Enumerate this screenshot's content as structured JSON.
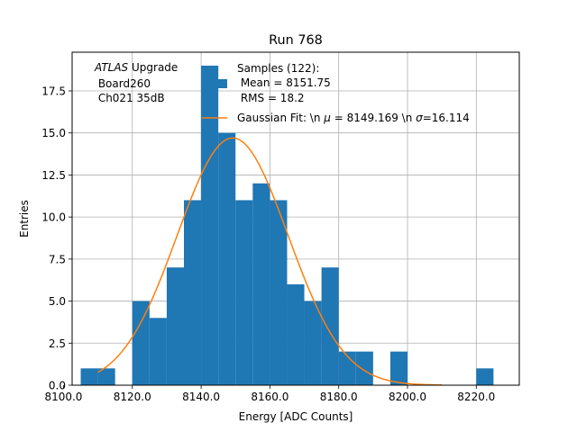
{
  "chart_data": {
    "type": "bar",
    "title": "Run 768",
    "xlabel": "Energy [ADC Counts]",
    "ylabel": "Entries",
    "xlim": [
      8102.5,
      8232.5
    ],
    "ylim": [
      0,
      19.8
    ],
    "x_ticks": [
      8100.0,
      8120.0,
      8140.0,
      8160.0,
      8180.0,
      8200.0,
      8220.0
    ],
    "x_tick_labels": [
      "8100.0",
      "8120.0",
      "8140.0",
      "8160.0",
      "8180.0",
      "8200.0",
      "8220.0"
    ],
    "y_ticks": [
      0.0,
      2.5,
      5.0,
      7.5,
      10.0,
      12.5,
      15.0,
      17.5
    ],
    "y_tick_labels": [
      "0.0",
      "2.5",
      "5.0",
      "7.5",
      "10.0",
      "12.5",
      "15.0",
      "17.5"
    ],
    "grid": true,
    "bin_width": 5,
    "bin_starts": [
      8105,
      8110,
      8115,
      8120,
      8125,
      8130,
      8135,
      8140,
      8145,
      8150,
      8155,
      8160,
      8165,
      8170,
      8175,
      8180,
      8185,
      8190,
      8195,
      8200,
      8205,
      8210,
      8215,
      8220
    ],
    "values": [
      1,
      1,
      0,
      5,
      4,
      7,
      11,
      19,
      15,
      11,
      12,
      11,
      6,
      5,
      7,
      2,
      2,
      0,
      2,
      0,
      0,
      0,
      0,
      1
    ],
    "fit": {
      "type": "gaussian",
      "amplitude": 14.7,
      "mu": 8149.169,
      "sigma": 16.114,
      "x_range": [
        8110,
        8210
      ]
    },
    "colors": {
      "bars": "#1f77b4",
      "fit": "#ff7f0e",
      "grid": "#b0b0b0"
    },
    "annotation": {
      "line1_italic": "ATLAS",
      "line1_rest": " Upgrade",
      "line2": " Board260",
      "line3": " Ch021 35dB"
    },
    "legend": {
      "placement": "top-center",
      "hist_lines": [
        "Samples (122):",
        " Mean = 8151.75",
        " RMS = 18.2"
      ],
      "fit_label": "Gaussian Fit: \\n $\\mu$ = 8149.169 \\n $\\sigma$=16.114"
    }
  }
}
